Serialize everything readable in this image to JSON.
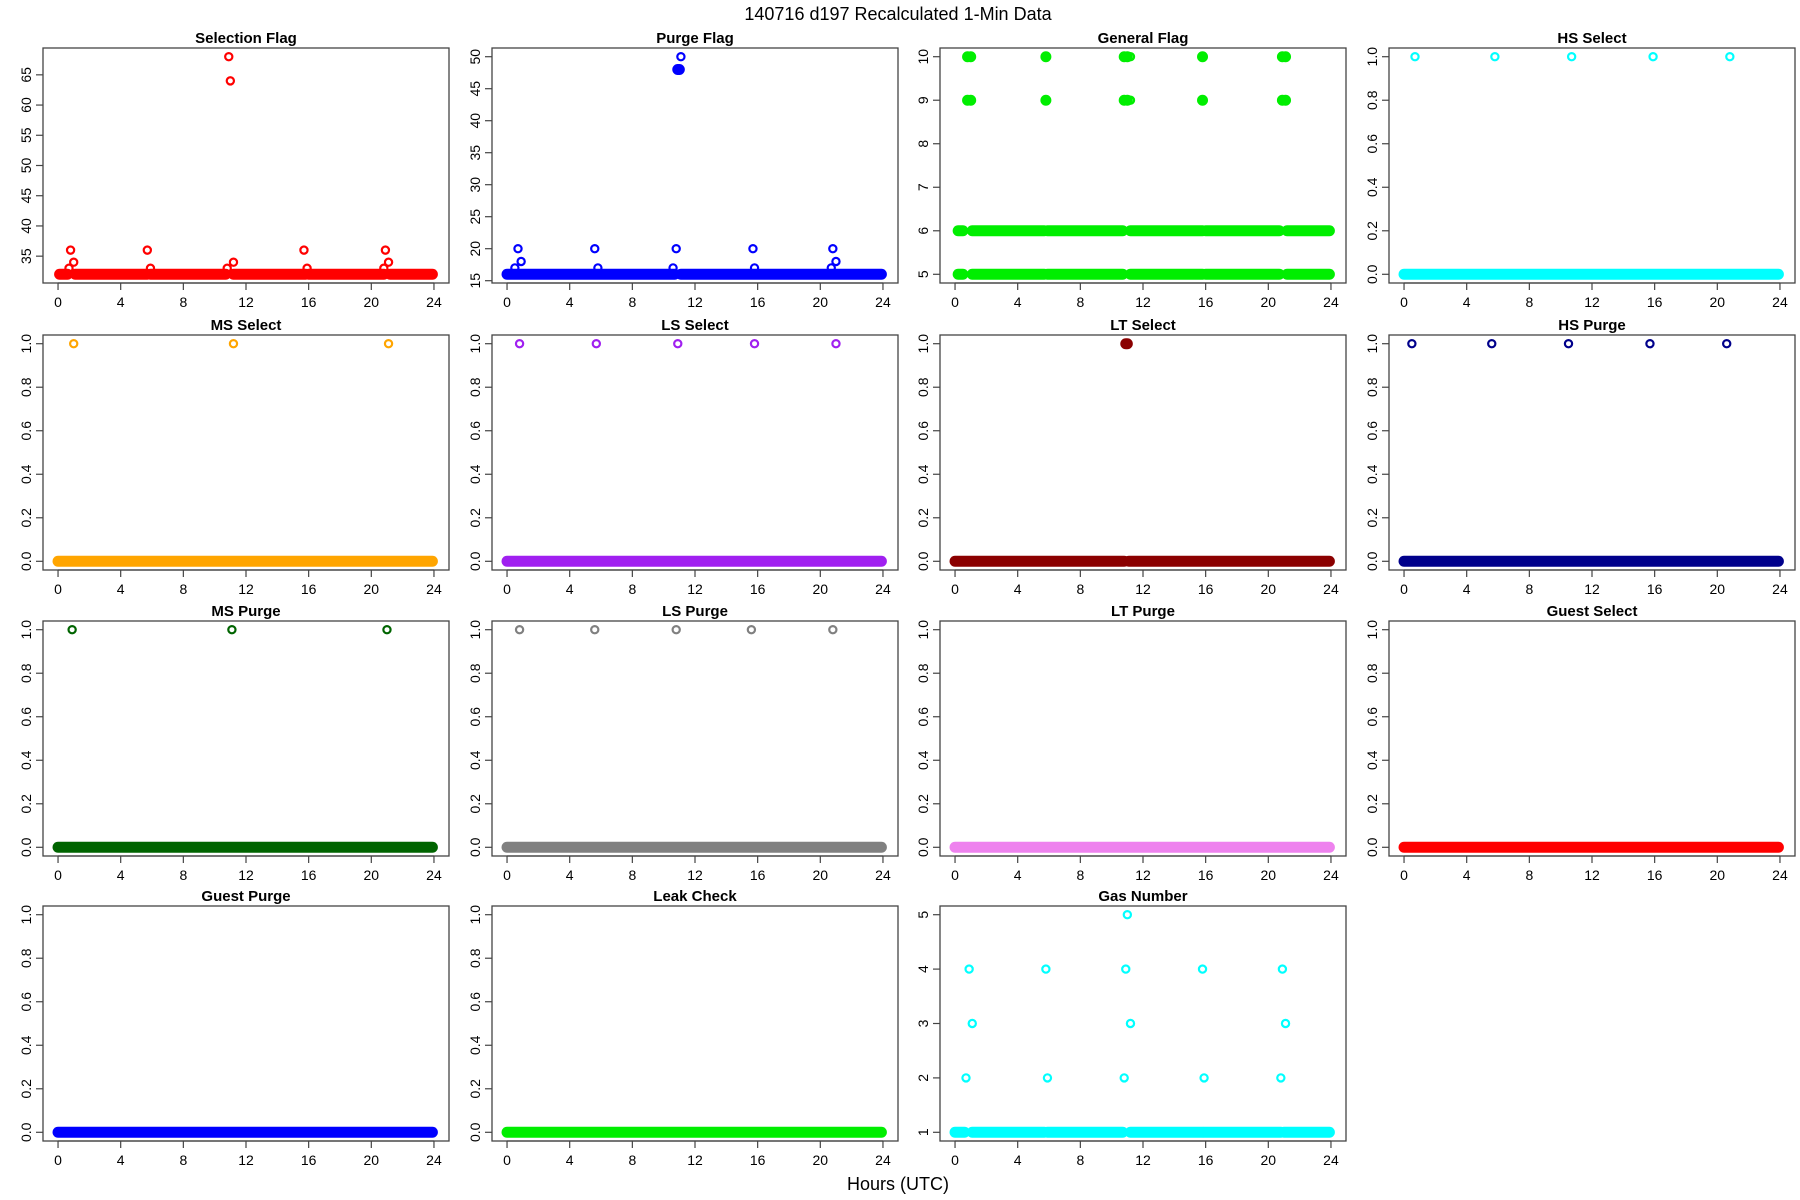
{
  "title": "140716   d197   Recalculated 1-Min Data",
  "xlabel": "Hours (UTC)",
  "chart_data": [
    {
      "type": "scatter",
      "title": "Selection Flag",
      "color": "#ff0000",
      "xlim": [
        0,
        24
      ],
      "yrange": [
        32,
        68
      ],
      "xticks": [
        0,
        4,
        8,
        12,
        16,
        20,
        24
      ],
      "yticks": [
        35,
        40,
        45,
        50,
        55,
        60,
        65
      ],
      "baseline": [
        [
          0.1,
          0.6,
          32
        ],
        [
          1.1,
          5.7,
          32
        ],
        [
          5.9,
          10.7,
          32
        ],
        [
          11.2,
          15.8,
          32
        ],
        [
          16.0,
          20.8,
          32
        ],
        [
          21.2,
          23.9,
          32
        ]
      ],
      "points": [
        [
          0.7,
          33
        ],
        [
          0.8,
          36
        ],
        [
          1.0,
          34
        ],
        [
          5.7,
          36
        ],
        [
          5.9,
          33
        ],
        [
          10.8,
          33
        ],
        [
          10.9,
          68
        ],
        [
          11.0,
          64
        ],
        [
          11.2,
          34
        ],
        [
          15.7,
          36
        ],
        [
          15.9,
          33
        ],
        [
          20.8,
          33
        ],
        [
          20.9,
          36
        ],
        [
          21.1,
          34
        ]
      ],
      "filled": []
    },
    {
      "type": "scatter",
      "title": "Purge Flag",
      "color": "#0000ff",
      "xlim": [
        0,
        24
      ],
      "yrange": [
        16,
        50
      ],
      "xticks": [
        0,
        4,
        8,
        12,
        16,
        20,
        24
      ],
      "yticks": [
        15,
        20,
        25,
        30,
        35,
        40,
        45,
        50
      ],
      "baseline": [
        [
          0.0,
          10.7,
          16
        ],
        [
          11.1,
          23.9,
          16
        ]
      ],
      "points": [
        [
          0.5,
          17
        ],
        [
          0.7,
          20
        ],
        [
          0.9,
          18
        ],
        [
          5.6,
          20
        ],
        [
          5.8,
          17
        ],
        [
          10.6,
          17
        ],
        [
          10.8,
          20
        ],
        [
          11.1,
          50
        ],
        [
          15.7,
          20
        ],
        [
          15.8,
          17
        ],
        [
          20.7,
          17
        ],
        [
          20.8,
          20
        ],
        [
          21.0,
          18
        ]
      ],
      "filled": [
        [
          10.9,
          48
        ],
        [
          11.0,
          48
        ]
      ]
    },
    {
      "type": "scatter",
      "title": "General Flag",
      "color": "#00ee00",
      "xlim": [
        0,
        24
      ],
      "yrange": [
        5,
        10
      ],
      "xticks": [
        0,
        4,
        8,
        12,
        16,
        20,
        24
      ],
      "yticks": [
        5,
        6,
        7,
        8,
        9,
        10
      ],
      "baseline": [
        [
          0.2,
          0.5,
          5
        ],
        [
          1.1,
          5.7,
          5
        ],
        [
          5.9,
          10.7,
          5
        ],
        [
          11.2,
          15.8,
          5
        ],
        [
          16.0,
          20.7,
          5
        ],
        [
          21.2,
          23.9,
          5
        ],
        [
          0.2,
          0.5,
          6
        ],
        [
          1.1,
          5.7,
          6
        ],
        [
          5.9,
          10.7,
          6
        ],
        [
          11.2,
          15.8,
          6
        ],
        [
          16.0,
          20.7,
          6
        ],
        [
          21.2,
          23.9,
          6
        ]
      ],
      "points": [
        [
          11.2,
          10
        ],
        [
          11.2,
          9
        ]
      ],
      "filled": [
        [
          0.8,
          10
        ],
        [
          1.0,
          10
        ],
        [
          0.8,
          9
        ],
        [
          1.0,
          9
        ],
        [
          5.8,
          10
        ],
        [
          5.8,
          9
        ],
        [
          10.8,
          10
        ],
        [
          11.0,
          10
        ],
        [
          10.8,
          9
        ],
        [
          11.0,
          9
        ],
        [
          15.8,
          10
        ],
        [
          15.8,
          9
        ],
        [
          20.9,
          10
        ],
        [
          21.1,
          10
        ],
        [
          20.9,
          9
        ],
        [
          21.1,
          9
        ]
      ]
    },
    {
      "type": "scatter",
      "title": "HS Select",
      "color": "#00ffff",
      "xlim": [
        0,
        24
      ],
      "yrange": [
        0,
        1
      ],
      "xticks": [
        0,
        4,
        8,
        12,
        16,
        20,
        24
      ],
      "yticks": [
        0,
        0.2,
        0.4,
        0.6,
        0.8,
        1
      ],
      "baseline": [
        [
          0.0,
          23.9,
          0
        ]
      ],
      "points": [
        [
          0.7,
          1
        ],
        [
          5.8,
          1
        ],
        [
          10.7,
          1
        ],
        [
          15.9,
          1
        ],
        [
          20.8,
          1
        ]
      ],
      "filled": []
    },
    {
      "type": "scatter",
      "title": "MS Select",
      "color": "#ffa500",
      "xlim": [
        0,
        24
      ],
      "yrange": [
        0,
        1
      ],
      "xticks": [
        0,
        4,
        8,
        12,
        16,
        20,
        24
      ],
      "yticks": [
        0,
        0.2,
        0.4,
        0.6,
        0.8,
        1
      ],
      "baseline": [
        [
          0.0,
          23.9,
          0
        ]
      ],
      "points": [
        [
          1.0,
          1
        ],
        [
          11.2,
          1
        ],
        [
          21.1,
          1
        ]
      ],
      "filled": []
    },
    {
      "type": "scatter",
      "title": "LS Select",
      "color": "#a020f0",
      "xlim": [
        0,
        24
      ],
      "yrange": [
        0,
        1
      ],
      "xticks": [
        0,
        4,
        8,
        12,
        16,
        20,
        24
      ],
      "yticks": [
        0,
        0.2,
        0.4,
        0.6,
        0.8,
        1
      ],
      "baseline": [
        [
          0.0,
          23.9,
          0
        ]
      ],
      "points": [
        [
          0.8,
          1
        ],
        [
          5.7,
          1
        ],
        [
          10.9,
          1
        ],
        [
          15.8,
          1
        ],
        [
          21.0,
          1
        ]
      ],
      "filled": []
    },
    {
      "type": "scatter",
      "title": "LT Select",
      "color": "#8b0000",
      "xlim": [
        0,
        24
      ],
      "yrange": [
        0,
        1
      ],
      "xticks": [
        0,
        4,
        8,
        12,
        16,
        20,
        24
      ],
      "yticks": [
        0,
        0.2,
        0.4,
        0.6,
        0.8,
        1
      ],
      "baseline": [
        [
          0.0,
          10.8,
          0
        ],
        [
          11.1,
          23.9,
          0
        ]
      ],
      "points": [],
      "filled": [
        [
          10.9,
          1
        ],
        [
          11.0,
          1
        ]
      ]
    },
    {
      "type": "scatter",
      "title": "HS Purge",
      "color": "#00008b",
      "xlim": [
        0,
        24
      ],
      "yrange": [
        0,
        1
      ],
      "xticks": [
        0,
        4,
        8,
        12,
        16,
        20,
        24
      ],
      "yticks": [
        0,
        0.2,
        0.4,
        0.6,
        0.8,
        1
      ],
      "baseline": [
        [
          0.0,
          23.9,
          0
        ]
      ],
      "points": [
        [
          0.5,
          1
        ],
        [
          5.6,
          1
        ],
        [
          10.5,
          1
        ],
        [
          15.7,
          1
        ],
        [
          20.6,
          1
        ]
      ],
      "filled": []
    },
    {
      "type": "scatter",
      "title": "MS Purge",
      "color": "#006400",
      "xlim": [
        0,
        24
      ],
      "yrange": [
        0,
        1
      ],
      "xticks": [
        0,
        4,
        8,
        12,
        16,
        20,
        24
      ],
      "yticks": [
        0,
        0.2,
        0.4,
        0.6,
        0.8,
        1
      ],
      "baseline": [
        [
          0.0,
          23.9,
          0
        ]
      ],
      "points": [
        [
          0.9,
          1
        ],
        [
          11.1,
          1
        ],
        [
          21.0,
          1
        ]
      ],
      "filled": []
    },
    {
      "type": "scatter",
      "title": "LS Purge",
      "color": "#808080",
      "xlim": [
        0,
        24
      ],
      "yrange": [
        0,
        1
      ],
      "xticks": [
        0,
        4,
        8,
        12,
        16,
        20,
        24
      ],
      "yticks": [
        0,
        0.2,
        0.4,
        0.6,
        0.8,
        1
      ],
      "baseline": [
        [
          0.0,
          23.9,
          0
        ]
      ],
      "points": [
        [
          0.8,
          1
        ],
        [
          5.6,
          1
        ],
        [
          10.8,
          1
        ],
        [
          15.6,
          1
        ],
        [
          20.8,
          1
        ]
      ],
      "filled": []
    },
    {
      "type": "scatter",
      "title": "LT Purge",
      "color": "#ee82ee",
      "xlim": [
        0,
        24
      ],
      "yrange": [
        0,
        1
      ],
      "xticks": [
        0,
        4,
        8,
        12,
        16,
        20,
        24
      ],
      "yticks": [
        0,
        0.2,
        0.4,
        0.6,
        0.8,
        1
      ],
      "baseline": [
        [
          0.0,
          23.9,
          0
        ]
      ],
      "points": [],
      "filled": []
    },
    {
      "type": "scatter",
      "title": "Guest Select",
      "color": "#ff0000",
      "xlim": [
        0,
        24
      ],
      "yrange": [
        0,
        1
      ],
      "xticks": [
        0,
        4,
        8,
        12,
        16,
        20,
        24
      ],
      "yticks": [
        0,
        0.2,
        0.4,
        0.6,
        0.8,
        1
      ],
      "baseline": [
        [
          0.0,
          23.9,
          0
        ]
      ],
      "points": [],
      "filled": []
    },
    {
      "type": "scatter",
      "title": "Guest Purge",
      "color": "#0000ff",
      "xlim": [
        0,
        24
      ],
      "yrange": [
        0,
        1
      ],
      "xticks": [
        0,
        4,
        8,
        12,
        16,
        20,
        24
      ],
      "yticks": [
        0,
        0.2,
        0.4,
        0.6,
        0.8,
        1
      ],
      "baseline": [
        [
          0.0,
          23.9,
          0
        ]
      ],
      "points": [],
      "filled": []
    },
    {
      "type": "scatter",
      "title": "Leak Check",
      "color": "#00ee00",
      "xlim": [
        0,
        24
      ],
      "yrange": [
        0,
        1
      ],
      "xticks": [
        0,
        4,
        8,
        12,
        16,
        20,
        24
      ],
      "yticks": [
        0,
        0.2,
        0.4,
        0.6,
        0.8,
        1
      ],
      "baseline": [
        [
          0.0,
          23.9,
          0
        ]
      ],
      "points": [],
      "filled": []
    },
    {
      "type": "scatter",
      "title": "Gas Number",
      "color": "#00ffff",
      "xlim": [
        0,
        24
      ],
      "yrange": [
        1,
        5
      ],
      "xticks": [
        0,
        4,
        8,
        12,
        16,
        20,
        24
      ],
      "yticks": [
        1,
        2,
        3,
        4,
        5
      ],
      "baseline": [
        [
          0.0,
          0.6,
          1
        ],
        [
          1.1,
          5.7,
          1
        ],
        [
          5.9,
          10.7,
          1
        ],
        [
          11.2,
          15.8,
          1
        ],
        [
          15.9,
          20.8,
          1
        ],
        [
          21.0,
          23.9,
          1
        ]
      ],
      "points": [
        [
          0.7,
          2
        ],
        [
          0.9,
          4
        ],
        [
          1.1,
          3
        ],
        [
          5.8,
          4
        ],
        [
          5.9,
          2
        ],
        [
          10.8,
          2
        ],
        [
          10.9,
          4
        ],
        [
          11.0,
          5
        ],
        [
          11.2,
          3
        ],
        [
          15.8,
          4
        ],
        [
          15.9,
          2
        ],
        [
          20.8,
          2
        ],
        [
          20.9,
          4
        ],
        [
          21.1,
          3
        ]
      ],
      "filled": []
    }
  ]
}
